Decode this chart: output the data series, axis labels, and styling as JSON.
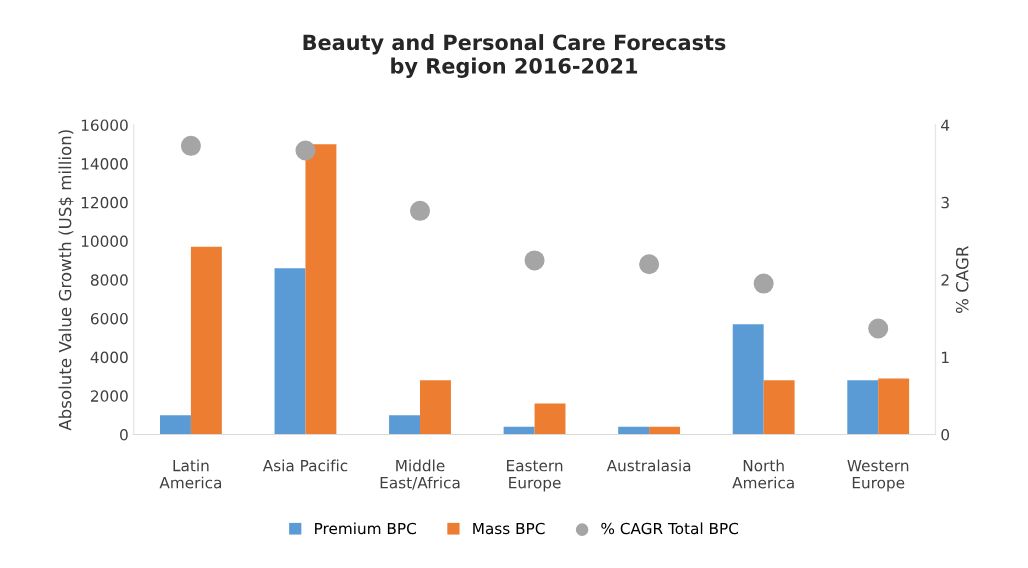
{
  "chart_data": {
    "type": "bar",
    "title": "Beauty and Personal Care Forecasts\nby Region 2016-2021",
    "categories": [
      "Latin\nAmerica",
      "Asia Pacific",
      "Middle\nEast/Africa",
      "Eastern\nEurope",
      "Australasia",
      "North\nAmerica",
      "Western\nEurope"
    ],
    "series": [
      {
        "name": "Premium BPC",
        "color": "#5b9bd5",
        "values": [
          1000,
          8600,
          1000,
          400,
          400,
          5700,
          2800
        ]
      },
      {
        "name": "Mass BPC",
        "color": "#ed7d31",
        "values": [
          9700,
          15000,
          2800,
          1600,
          400,
          2800,
          2900
        ]
      },
      {
        "name": "% CAGR Total BPC",
        "type": "scatter",
        "axis": "y2",
        "marker": "circle",
        "color": "#a5a5a5",
        "x": [
          "Latin\nAmerica",
          "Asia Pacific",
          "Middle\nEast/Africa",
          "Eastern\nEurope",
          "Australasia",
          "North\nAmerica",
          "Western\nEurope"
        ],
        "values": [
          3.73,
          3.67,
          2.89,
          2.25,
          2.2,
          1.95,
          1.37
        ]
      }
    ],
    "ylabel": "Absolute Value Growth (US$ million)",
    "y2label": "% CAGR",
    "ylim": [
      0,
      16000
    ],
    "yticks": [
      0,
      2000,
      4000,
      6000,
      8000,
      10000,
      12000,
      14000,
      16000
    ],
    "y2lim": [
      0,
      4
    ],
    "y2ticks": [
      0,
      1,
      2,
      3,
      4
    ],
    "grid": false,
    "legend": "bottom"
  }
}
